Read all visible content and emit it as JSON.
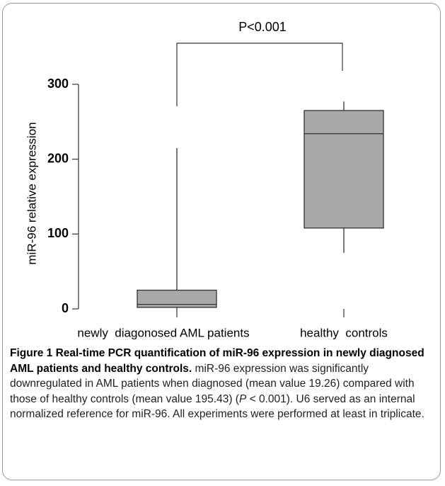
{
  "chart_data": {
    "type": "box",
    "y_label": "miR-96 relative expression",
    "categories": [
      "newly  diagonosed AML patients",
      "healthy  controls"
    ],
    "series": [
      {
        "name": null,
        "color": "#a9a9a9",
        "min": [
          0,
          75
        ],
        "q1": [
          2,
          108
        ],
        "median": [
          6,
          234
        ],
        "q3": [
          25,
          265
        ],
        "max": [
          215,
          277
        ]
      }
    ],
    "ylim": [
      0,
      300
    ],
    "yticks": [
      0,
      100,
      200,
      300
    ],
    "annotation": "P<0.001"
  },
  "caption": {
    "title": "Figure 1 Real-time PCR quantification of miR-96 expression in newly diagnosed AML patients and healthy controls.",
    "body_1": "miR-96 expression was significantly downregulated in AML patients when diagnosed (mean value 19.26) compared with those of healthy controls (mean value 195.43) (",
    "p": "P",
    "body_2": " < 0.001). U6 served as an internal normalized reference for miR-96. All experiments were performed at least in triplicate."
  }
}
